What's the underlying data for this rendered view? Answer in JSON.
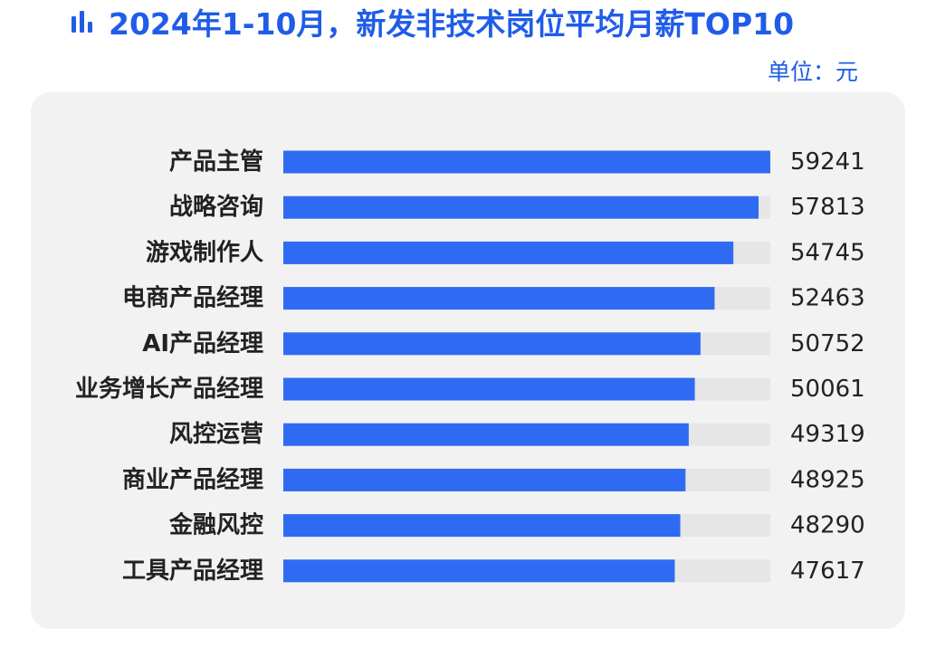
{
  "header": {
    "title": "2024年1-10月，新发非技术岗位平均月薪TOP10",
    "unit": "单位：元",
    "icon": "bar-chart-icon"
  },
  "colors": {
    "accent": "#1f5ce8",
    "bar": "#2f6bf2",
    "track": "#e6e6e6",
    "panel": "#f2f2f2",
    "label": "#222222"
  },
  "chart_data": {
    "type": "bar",
    "orientation": "horizontal",
    "categories": [
      "产品主管",
      "战略咨询",
      "游戏制作人",
      "电商产品经理",
      "AI产品经理",
      "业务增长产品经理",
      "风控运营",
      "商业产品经理",
      "金融风控",
      "工具产品经理"
    ],
    "values": [
      59241,
      57813,
      54745,
      52463,
      50752,
      50061,
      49319,
      48925,
      48290,
      47617
    ],
    "xlim": [
      0,
      59241
    ],
    "data_labels": true
  }
}
